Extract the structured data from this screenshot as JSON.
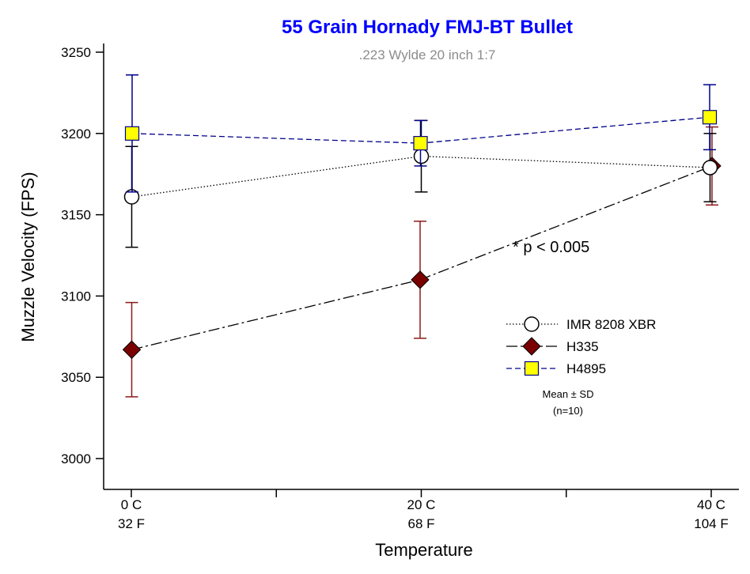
{
  "chart_data": {
    "type": "line",
    "title": "55 Grain Hornady FMJ-BT Bullet",
    "subtitle": ".223 Wylde 20 inch 1:7",
    "xlabel": "Temperature",
    "ylabel": "Muzzle Velocity (FPS)",
    "ylim": [
      3000,
      3250
    ],
    "yticks": [
      3000,
      3050,
      3100,
      3150,
      3200,
      3250
    ],
    "categories": [
      {
        "line1": "0 C",
        "line2": "32 F",
        "celsius": 0
      },
      {
        "line1": "20 C",
        "line2": "68 F",
        "celsius": 20
      },
      {
        "line1": "40 C",
        "line2": "104 F",
        "celsius": 40
      }
    ],
    "series": [
      {
        "name": "IMR 8208 XBR",
        "marker": "circle",
        "line_style": "dotted",
        "color": "#000000",
        "fill": "#ffffff",
        "error_color": "#000000",
        "x": [
          0,
          20,
          40
        ],
        "x_offset": [
          0.5,
          0,
          -1.5
        ],
        "values": [
          3161,
          3186,
          3179
        ],
        "sd": [
          31,
          22,
          21
        ]
      },
      {
        "name": "H335",
        "marker": "diamond",
        "line_style": "dash-dot",
        "color": "#000000",
        "fill": "#7a0000",
        "error_color": "#8b1a1a",
        "x": [
          0,
          20,
          40
        ],
        "x_offset": [
          0.5,
          -1.5,
          1.0
        ],
        "values": [
          3067,
          3110,
          3180
        ],
        "sd": [
          29,
          36,
          24
        ]
      },
      {
        "name": "H4895",
        "marker": "square",
        "line_style": "dashed",
        "color": "#00008b",
        "fill": "#ffff00",
        "error_color": "#00008b",
        "x": [
          0,
          20,
          40
        ],
        "x_offset": [
          1.0,
          -1.0,
          -2.0
        ],
        "values": [
          3200,
          3194,
          3210
        ],
        "sd": [
          36,
          14,
          20
        ]
      }
    ],
    "annotation": "* p < 0.005",
    "legend_note_line1": "Mean ± SD",
    "legend_note_line2": "(n=10)",
    "legend_position": "right",
    "grid": false,
    "colors": {
      "title": "#0000ff",
      "subtitle": "#8c8c8c"
    }
  }
}
